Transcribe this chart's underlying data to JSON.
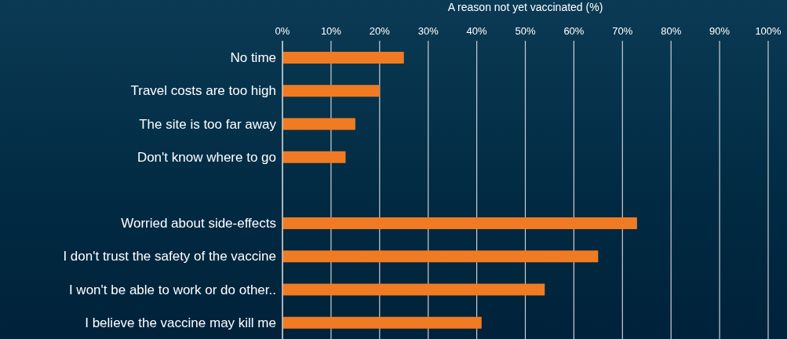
{
  "chart_data": {
    "type": "bar",
    "orientation": "horizontal",
    "xlabel": "A reason not yet vaccinated (%)",
    "categories": [
      "No time",
      "Travel costs are too high",
      "The site is too far away",
      "Don't know where to go",
      null,
      "Worried about side-effects",
      "I don't trust the safety of the vaccine",
      "I won't be able to work or do other..",
      "I believe the vaccine may kill me"
    ],
    "values": [
      25,
      20,
      15,
      13,
      null,
      73,
      65,
      54,
      41
    ],
    "color": "#f07b22",
    "xlim": [
      0,
      100
    ],
    "xticks": [
      {
        "value": 0,
        "label": "0%"
      },
      {
        "value": 10,
        "label": "10%"
      },
      {
        "value": 20,
        "label": "20%"
      },
      {
        "value": 30,
        "label": "30%"
      },
      {
        "value": 40,
        "label": "40%"
      },
      {
        "value": 50,
        "label": "50%"
      },
      {
        "value": 60,
        "label": "60%"
      },
      {
        "value": 70,
        "label": "70%"
      },
      {
        "value": 80,
        "label": "80%"
      },
      {
        "value": 90,
        "label": "90%"
      },
      {
        "value": 100,
        "label": "100%"
      }
    ],
    "grid": "x"
  }
}
